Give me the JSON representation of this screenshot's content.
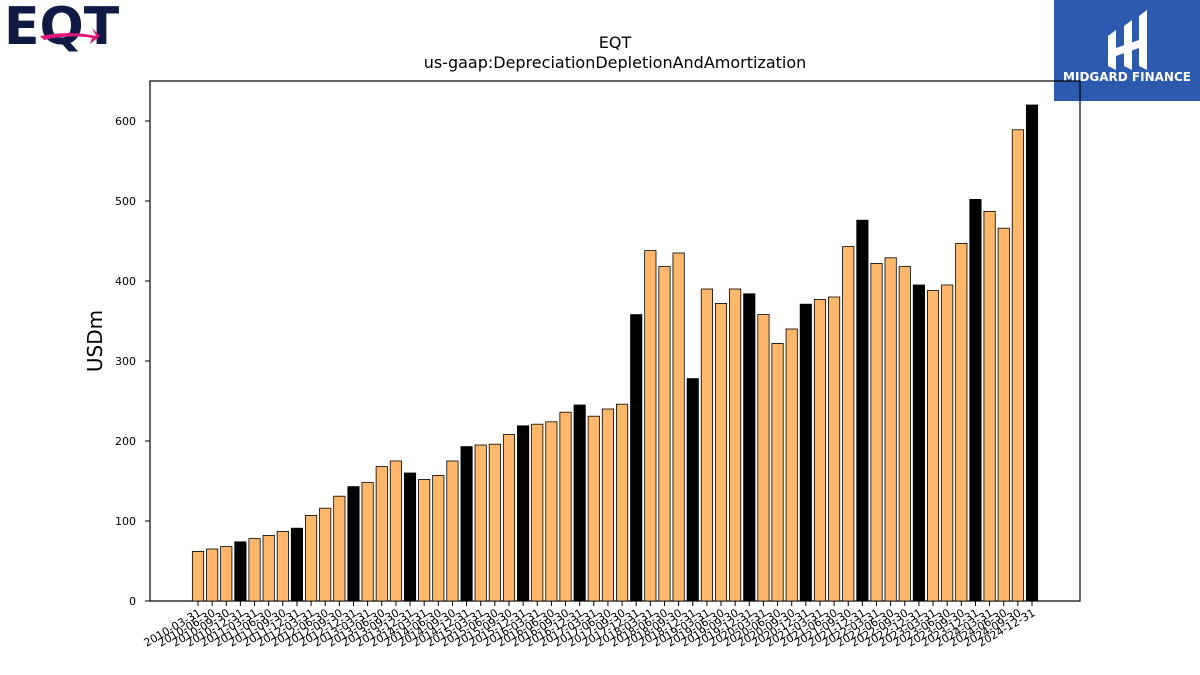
{
  "brand": {
    "company_logo": "EQT",
    "corner_logo": "MIDGARD FINANCE",
    "corner_logo_color": "#2b5aae",
    "company_logo_color": "#0f1a45",
    "company_logo_accent": "#e0177a"
  },
  "chart_data": {
    "type": "bar",
    "title": "EQT",
    "subtitle": "us-gaap:DepreciationDepletionAndAmortization",
    "xlabel": "",
    "ylabel": "USDm",
    "ylim": [
      0,
      650
    ],
    "yticks": [
      0,
      100,
      200,
      300,
      400,
      500,
      600
    ],
    "grid": false,
    "bar_color_quarter": "#ffb86b",
    "bar_color_annual": "#000000",
    "categories": [
      "2010-03-31",
      "2010-06-30",
      "2010-09-30",
      "2010-12-31",
      "2011-03-31",
      "2011-06-30",
      "2011-09-30",
      "2011-12-31",
      "2012-03-31",
      "2012-06-30",
      "2012-09-30",
      "2012-12-31",
      "2013-03-31",
      "2013-06-30",
      "2013-09-30",
      "2013-12-31",
      "2014-03-31",
      "2014-06-30",
      "2014-09-30",
      "2014-12-31",
      "2015-03-31",
      "2015-06-30",
      "2015-09-30",
      "2015-12-31",
      "2016-03-31",
      "2016-06-30",
      "2016-09-30",
      "2016-12-31",
      "2017-03-31",
      "2017-06-30",
      "2017-09-30",
      "2017-12-31",
      "2018-03-31",
      "2018-06-30",
      "2018-09-30",
      "2018-12-31",
      "2019-03-31",
      "2019-06-30",
      "2019-09-30",
      "2019-12-31",
      "2020-03-31",
      "2020-06-30",
      "2020-09-30",
      "2020-12-31",
      "2021-03-31",
      "2021-06-30",
      "2021-09-30",
      "2021-12-31",
      "2022-03-31",
      "2022-06-30",
      "2022-09-30",
      "2022-12-31",
      "2023-03-31",
      "2023-06-30",
      "2023-09-30",
      "2023-12-31",
      "2024-03-31",
      "2024-06-30",
      "2024-09-30",
      "2024-12-31"
    ],
    "values": [
      62,
      65,
      68,
      74,
      78,
      82,
      87,
      91,
      107,
      116,
      131,
      143,
      148,
      168,
      175,
      160,
      152,
      157,
      175,
      193,
      195,
      196,
      208,
      219,
      221,
      224,
      236,
      245,
      231,
      240,
      246,
      358,
      438,
      418,
      435,
      278,
      390,
      372,
      390,
      384,
      358,
      322,
      340,
      371,
      377,
      380,
      443,
      476,
      422,
      429,
      418,
      395,
      388,
      395,
      447,
      502,
      487,
      466,
      589,
      620
    ],
    "annual_flags": [
      false,
      false,
      false,
      true,
      false,
      false,
      false,
      true,
      false,
      false,
      false,
      true,
      false,
      false,
      false,
      true,
      false,
      false,
      false,
      true,
      false,
      false,
      false,
      true,
      false,
      false,
      false,
      true,
      false,
      false,
      false,
      true,
      false,
      false,
      false,
      true,
      false,
      false,
      false,
      true,
      false,
      false,
      false,
      true,
      false,
      false,
      false,
      true,
      false,
      false,
      false,
      true,
      false,
      false,
      false,
      true,
      false,
      false,
      false,
      true
    ]
  }
}
